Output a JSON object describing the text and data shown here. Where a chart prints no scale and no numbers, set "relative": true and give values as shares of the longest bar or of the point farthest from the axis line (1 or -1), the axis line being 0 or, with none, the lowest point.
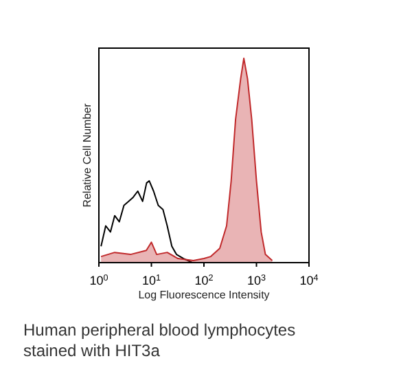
{
  "chart_data": {
    "type": "area",
    "xlabel": "Log Fluorescence Intensity",
    "ylabel": "Relative Cell Number",
    "relative": true,
    "log": "x",
    "xlim": [
      1,
      10000
    ],
    "xticks": [
      {
        "value": 1,
        "label": "10$^{0}$"
      },
      {
        "value": 10,
        "label": "10$^{1}$"
      },
      {
        "value": 100,
        "label": "10$^{2}$"
      },
      {
        "value": 1000,
        "label": "10$^{3}$"
      },
      {
        "value": 10000,
        "label": "10$^{4}$"
      }
    ],
    "series": [
      {
        "type": "line",
        "color": "#000000",
        "x": [
          1.1,
          1.35,
          1.66,
          2.0,
          2.45,
          3.0,
          3.7,
          4.5,
          5.5,
          6.8,
          8.1,
          9.1,
          11,
          13.5,
          16.6,
          20,
          24.5,
          30,
          41,
          60,
          91
        ],
        "values": [
          0.08,
          0.18,
          0.15,
          0.23,
          0.2,
          0.28,
          0.3,
          0.32,
          0.35,
          0.3,
          0.39,
          0.4,
          0.35,
          0.28,
          0.26,
          0.18,
          0.08,
          0.04,
          0.02,
          0,
          0
        ]
      },
      {
        "color": "#c0282a",
        "x": [
          1.1,
          2,
          4,
          8,
          10,
          12.6,
          20,
          32,
          63,
          100,
          135,
          200,
          270,
          330,
          400,
          500,
          575,
          676,
          813,
          1000,
          1230,
          1480,
          2000
        ],
        "values": [
          0.03,
          0.05,
          0.04,
          0.06,
          0.1,
          0.04,
          0.05,
          0.02,
          0.01,
          0.02,
          0.03,
          0.07,
          0.18,
          0.4,
          0.7,
          0.9,
          1,
          0.9,
          0.7,
          0.4,
          0.15,
          0.04,
          0.01
        ]
      }
    ],
    "annotations": [
      "Human peripheral blood lymphocytes stained with HIT3a"
    ]
  }
}
